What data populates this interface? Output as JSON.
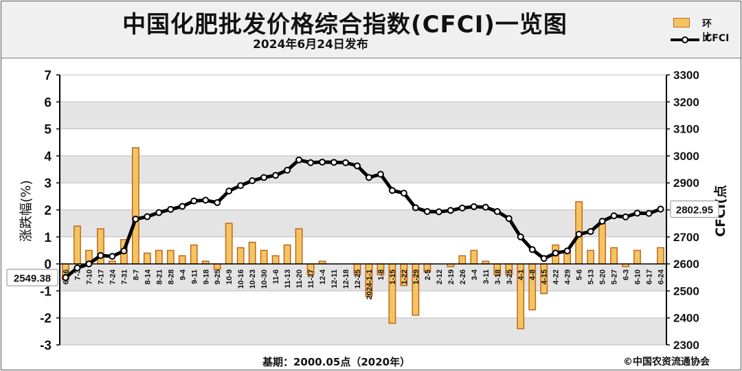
{
  "title": "中国化肥批发价格综合指数(CFCI)一览图",
  "subtitle": "2024年6月24日发布",
  "legend": {
    "bar_label": "环比",
    "line_label": "CFCI"
  },
  "footer": {
    "base": "基期：2000.05点（2020年）",
    "copyright": "©中国农资流通协会"
  },
  "colors": {
    "bar_fill": "#f3c561",
    "bar_stroke": "#c2651d",
    "line": "#000000",
    "grid_band": "#e4e4e4"
  },
  "chart_data": {
    "type": "bar+line",
    "left_ylabel": "涨跌幅(%)",
    "right_ylabel": "CFCI(点",
    "left_ylim": [
      -3,
      7
    ],
    "right_ylim": [
      2300,
      3300
    ],
    "left_ticks": [
      "-3",
      "-2",
      "-1",
      "0",
      "1",
      "2",
      "3",
      "4",
      "5",
      "6",
      "7"
    ],
    "right_ticks": [
      "2300",
      "2400",
      "2500",
      "2600",
      "2700",
      "2800",
      "2900",
      "3000",
      "3100",
      "3200",
      "3300"
    ],
    "categories": [
      "6-26",
      "7-3",
      "7-10",
      "7-17",
      "7-24",
      "7-31",
      "8-7",
      "8-14",
      "8-21",
      "8-28",
      "9-4",
      "9-11",
      "9-18",
      "9-25",
      "10-9",
      "10-16",
      "10-23",
      "10-30",
      "11-6",
      "11-13",
      "11-20",
      "11-27",
      "12-4",
      "12-11",
      "12-18",
      "12-25",
      "2024-1-1",
      "1-8",
      "1-15",
      "1-22",
      "1-29",
      "2-5",
      "2-12",
      "2-19",
      "2-26",
      "3-4",
      "3-11",
      "3-18",
      "3-25",
      "4-1",
      "4-8",
      "4-15",
      "4-22",
      "4-29",
      "5-6",
      "5-13",
      "5-20",
      "5-27",
      "6-3",
      "6-10",
      "6-17",
      "6-24"
    ],
    "series": [
      {
        "name": "环比",
        "type": "bar",
        "values": [
          -0.6,
          1.4,
          0.5,
          1.3,
          0.1,
          0.9,
          4.3,
          0.4,
          0.5,
          0.5,
          0.3,
          0.7,
          0.1,
          -0.2,
          1.5,
          0.6,
          0.8,
          0.5,
          0.3,
          0.7,
          1.3,
          -0.4,
          0.1,
          0.0,
          0.0,
          -0.4,
          -1.2,
          -0.4,
          -2.2,
          -0.8,
          -1.9,
          -0.3,
          0.0,
          -0.1,
          0.3,
          0.5,
          0.1,
          -0.4,
          -0.4,
          -2.4,
          -1.7,
          -1.1,
          0.7,
          0.5,
          2.3,
          0.5,
          1.5,
          0.6,
          -0.1,
          0.5,
          0.0,
          0.6
        ]
      },
      {
        "name": "CFCI",
        "type": "line",
        "values": [
          2549.38,
          2585,
          2600,
          2631,
          2628,
          2648,
          2766,
          2775,
          2790,
          2802,
          2813,
          2833,
          2836,
          2827,
          2870,
          2890,
          2908,
          2920,
          2928,
          2947,
          2985,
          2975,
          2977,
          2976,
          2975,
          2963,
          2920,
          2932,
          2872,
          2862,
          2808,
          2794,
          2793,
          2798,
          2807,
          2812,
          2810,
          2794,
          2768,
          2700,
          2653,
          2620,
          2640,
          2648,
          2710,
          2720,
          2758,
          2778,
          2774,
          2788,
          2787,
          2802.95
        ]
      }
    ],
    "data_labels": {
      "first": "2549.38",
      "last": "2802.95"
    }
  }
}
